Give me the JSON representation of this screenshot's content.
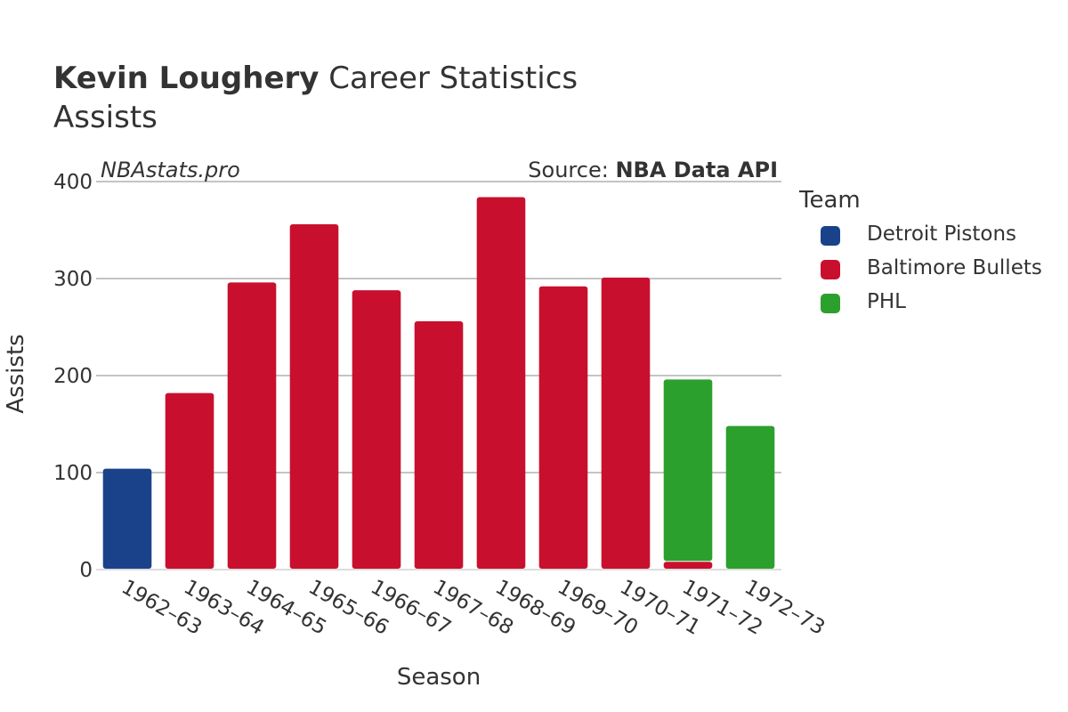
{
  "title": {
    "bold": "Kevin Loughery",
    "rest": "Career Statistics"
  },
  "subtitle": "Assists",
  "watermark": "NBAstats.pro",
  "source": {
    "prefix": "Source:",
    "name": "NBA Data API"
  },
  "legend": {
    "title": "Team",
    "items": [
      {
        "label": "Detroit Pistons",
        "color": "#1a428a"
      },
      {
        "label": "Baltimore Bullets",
        "color": "#c8102e"
      },
      {
        "label": "PHL",
        "color": "#2ca02c"
      }
    ]
  },
  "chart_data": {
    "type": "bar",
    "stacked": true,
    "title": "Kevin Loughery Career Statistics",
    "subtitle": "Assists",
    "xlabel": "Season",
    "ylabel": "Assists",
    "ylim": [
      0,
      400
    ],
    "yticks": [
      0,
      100,
      200,
      300,
      400
    ],
    "grid": true,
    "legend_position": "right",
    "categories": [
      "1962–63",
      "1963–64",
      "1964–65",
      "1965–66",
      "1966–67",
      "1967–68",
      "1968–69",
      "1969–70",
      "1970–71",
      "1971–72",
      "1972–73"
    ],
    "series": [
      {
        "name": "Detroit Pistons",
        "color": "#1a428a",
        "values": [
          104,
          0,
          0,
          0,
          0,
          0,
          0,
          0,
          0,
          0,
          0
        ]
      },
      {
        "name": "Baltimore Bullets",
        "color": "#c8102e",
        "values": [
          0,
          182,
          296,
          356,
          288,
          256,
          384,
          292,
          301,
          8,
          0
        ]
      },
      {
        "name": "PHL",
        "color": "#2ca02c",
        "values": [
          0,
          0,
          0,
          0,
          0,
          0,
          0,
          0,
          0,
          188,
          148
        ]
      }
    ]
  }
}
